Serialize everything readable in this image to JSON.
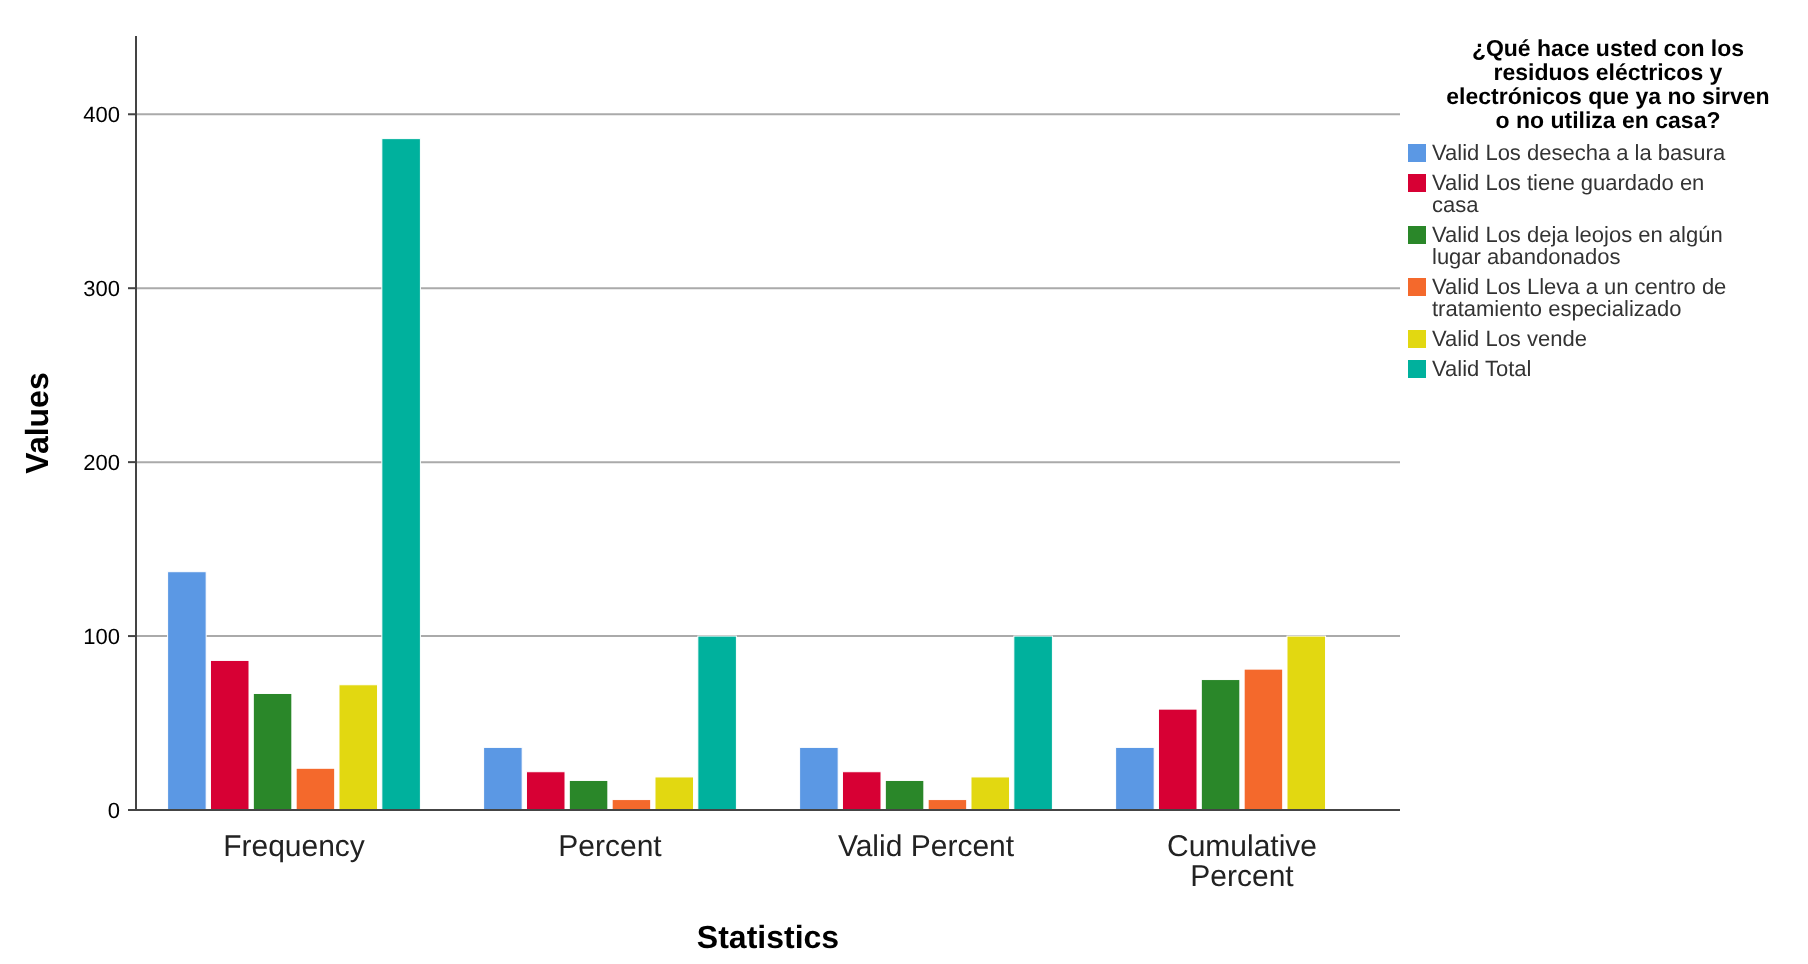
{
  "chart_data": {
    "type": "bar",
    "xlabel": "Statistics",
    "ylabel": "Values",
    "legend_title": "¿Qué hace usted con los residuos eléctricos y electrónicos que ya no sirven o no utiliza en casa?",
    "categories": [
      "Frequency",
      "Percent",
      "Valid Percent",
      "Cumulative Percent"
    ],
    "series": [
      {
        "name": "Valid Los desecha a la basura",
        "color": "#5b98e4",
        "values": [
          137,
          36,
          36,
          36
        ]
      },
      {
        "name": "Valid Los tiene guardado en casa",
        "color": "#d70034",
        "values": [
          86,
          22,
          22,
          58
        ]
      },
      {
        "name": "Valid Los deja leojos en algún lugar abandonados",
        "color": "#2a8729",
        "values": [
          67,
          17,
          17,
          75
        ]
      },
      {
        "name": "Valid Los Lleva a un centro de tratamiento especializado",
        "color": "#f4692c",
        "values": [
          24,
          6,
          6,
          81
        ]
      },
      {
        "name": "Valid Los vende",
        "color": "#e2d811",
        "values": [
          72,
          19,
          19,
          100
        ]
      },
      {
        "name": "Valid Total",
        "color": "#00b19d",
        "values": [
          386,
          100,
          100,
          null
        ]
      }
    ],
    "ylim": [
      0,
      445
    ],
    "yticks": [
      0,
      100,
      200,
      300,
      400
    ],
    "grid": "y",
    "legend": "right"
  }
}
